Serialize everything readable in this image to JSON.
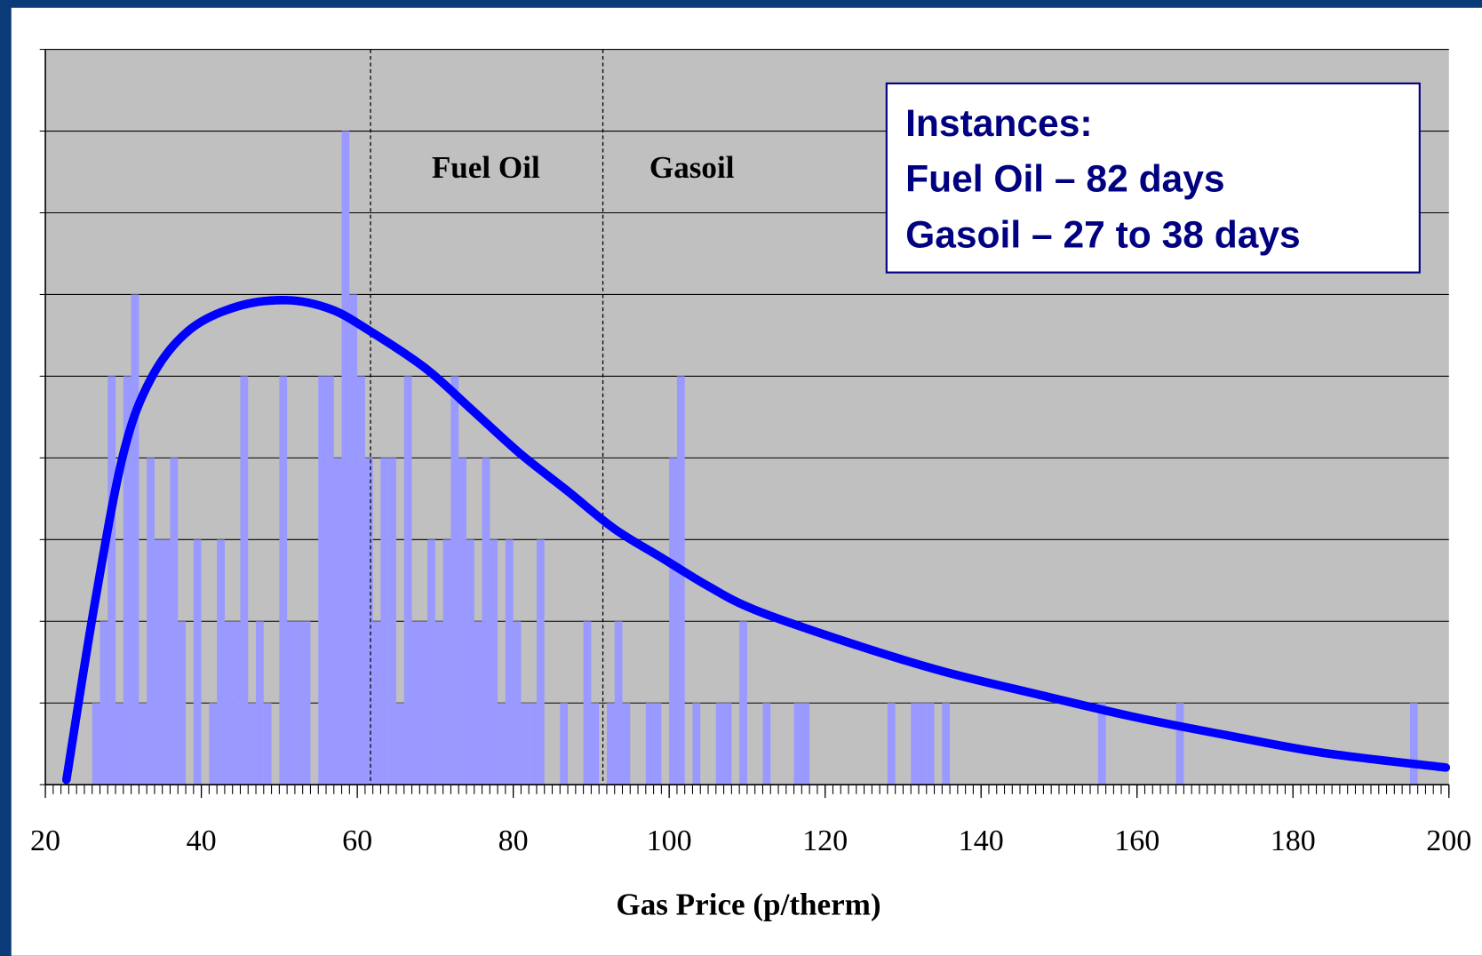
{
  "chart_data": {
    "type": "histogram",
    "x_label": "Gas Price (p/therm)",
    "bins": [
      20,
      21,
      22,
      23,
      24,
      25,
      26,
      27,
      28,
      29,
      30,
      31,
      32,
      33,
      34,
      35,
      36,
      37,
      38,
      39,
      40,
      41,
      42,
      43,
      44,
      45,
      46,
      47,
      48,
      49,
      50,
      51,
      52,
      53,
      54,
      55,
      56,
      57,
      58,
      59,
      60,
      61,
      62,
      63,
      64,
      65,
      66,
      67,
      68,
      69,
      70,
      71,
      72,
      73,
      74,
      75,
      76,
      77,
      78,
      79,
      80,
      81,
      82,
      83,
      84,
      85,
      86,
      87,
      88,
      89,
      90,
      91,
      92,
      93,
      94,
      95,
      96,
      97,
      98,
      99,
      100,
      101,
      102,
      103,
      104,
      105,
      106,
      107,
      108,
      109,
      110,
      111,
      112,
      113,
      114,
      115,
      116,
      117,
      118,
      119,
      120,
      121,
      122,
      123,
      124,
      125,
      126,
      127,
      128,
      129,
      130,
      131,
      132,
      133,
      134,
      135,
      136,
      137,
      138,
      139,
      140,
      141,
      142,
      143,
      144,
      145,
      146,
      147,
      148,
      149,
      150,
      151,
      152,
      153,
      154,
      155,
      156,
      157,
      158,
      159,
      160,
      161,
      162,
      163,
      164,
      165,
      166,
      167,
      168,
      169,
      170,
      171,
      172,
      173,
      174,
      175,
      176,
      177,
      178,
      179,
      180,
      181,
      182,
      183,
      184,
      185,
      186,
      187,
      188,
      189,
      190,
      191,
      192,
      193,
      194,
      195,
      196,
      197,
      198,
      199,
      200
    ],
    "values": [
      0,
      0,
      0,
      0,
      0,
      0,
      1,
      2,
      5,
      1,
      5,
      6,
      1,
      4,
      3,
      3,
      4,
      2,
      0,
      3,
      0,
      1,
      3,
      2,
      2,
      5,
      1,
      2,
      1,
      0,
      5,
      2,
      2,
      2,
      0,
      5,
      5,
      4,
      8,
      6,
      5,
      4,
      2,
      4,
      4,
      1,
      5,
      2,
      2,
      3,
      2,
      3,
      5,
      4,
      3,
      2,
      4,
      3,
      1,
      3,
      2,
      1,
      1,
      3,
      0,
      0,
      1,
      0,
      0,
      2,
      1,
      0,
      1,
      2,
      1,
      0,
      0,
      1,
      1,
      0,
      4,
      5,
      0,
      1,
      0,
      0,
      1,
      1,
      0,
      2,
      0,
      0,
      1,
      0,
      0,
      0,
      1,
      1,
      0,
      0,
      0,
      0,
      0,
      0,
      0,
      0,
      0,
      0,
      1,
      0,
      0,
      1,
      1,
      1,
      0,
      1,
      0,
      0,
      0,
      0,
      0,
      0,
      0,
      0,
      0,
      0,
      0,
      0,
      0,
      0,
      0,
      0,
      0,
      0,
      0,
      1,
      0,
      0,
      0,
      0,
      0,
      0,
      0,
      0,
      0,
      1,
      0,
      0,
      0,
      0,
      0,
      0,
      0,
      0,
      0,
      0,
      0,
      0,
      0,
      0,
      0,
      0,
      0,
      0,
      0,
      0,
      0,
      0,
      0,
      0,
      0,
      0,
      0,
      0,
      0,
      1,
      0,
      0,
      0,
      0
    ],
    "color": "#9999ff",
    "curve": {
      "x": [
        22.7,
        26.3,
        30,
        33.6,
        38.4,
        44.5,
        51,
        56.6,
        61.5,
        68.7,
        74.8,
        80.8,
        86.9,
        93,
        99,
        105,
        111,
        123,
        135,
        147.5,
        159.6,
        171.8,
        183.9,
        199.6
      ],
      "values": [
        0.06,
        2.2,
        4.05,
        4.98,
        5.56,
        5.85,
        5.93,
        5.82,
        5.56,
        5.1,
        4.58,
        4.06,
        3.6,
        3.13,
        2.78,
        2.43,
        2.14,
        1.74,
        1.39,
        1.1,
        0.83,
        0.6,
        0.39,
        0.21
      ],
      "color": "#0000ff"
    },
    "vlines": [
      61.7,
      91.5
    ],
    "region_labels": [
      "Fuel Oil",
      "Gasoil"
    ],
    "annotation_box": [
      "Instances:",
      "Fuel Oil – 82 days",
      "Gasoil – 27 to 38 days"
    ],
    "xlim": [
      20,
      200
    ],
    "xticks": [
      20,
      40,
      60,
      80,
      100,
      120,
      140,
      160,
      180,
      200
    ],
    "ylim": [
      0,
      9
    ],
    "yticks": [
      0,
      1,
      2,
      3,
      4,
      5,
      6,
      7,
      8,
      9
    ],
    "grid": true
  }
}
